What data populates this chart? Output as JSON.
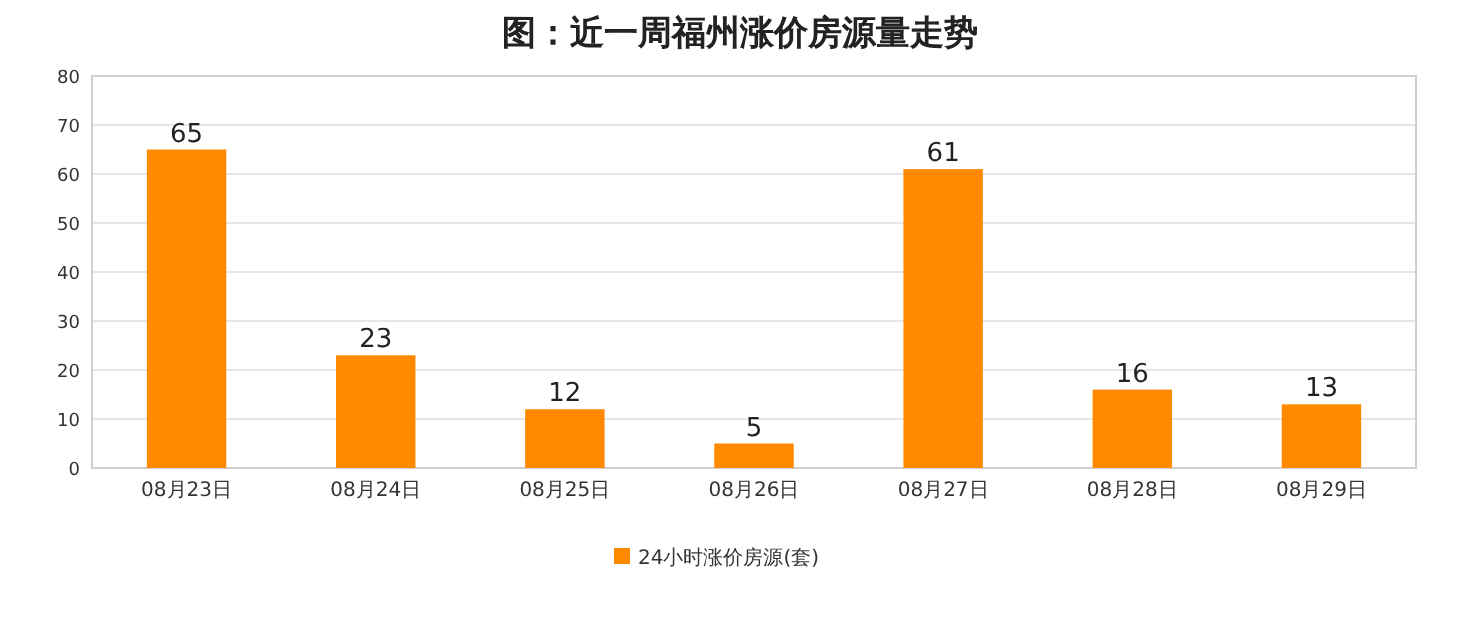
{
  "chart_data": {
    "type": "bar",
    "title": "图：近一周福州涨价房源量走势",
    "categories": [
      "08月23日",
      "08月24日",
      "08月25日",
      "08月26日",
      "08月27日",
      "08月28日",
      "08月29日"
    ],
    "series": [
      {
        "name": "24小时涨价房源(套)",
        "color": "#ff8a00",
        "values": [
          65,
          23,
          12,
          5,
          61,
          16,
          13
        ]
      }
    ],
    "ylim": [
      0,
      80
    ],
    "yticks": [
      0,
      10,
      20,
      30,
      40,
      50,
      60,
      70,
      80
    ],
    "grid": "y",
    "legend": "bottom",
    "data_labels": true
  }
}
